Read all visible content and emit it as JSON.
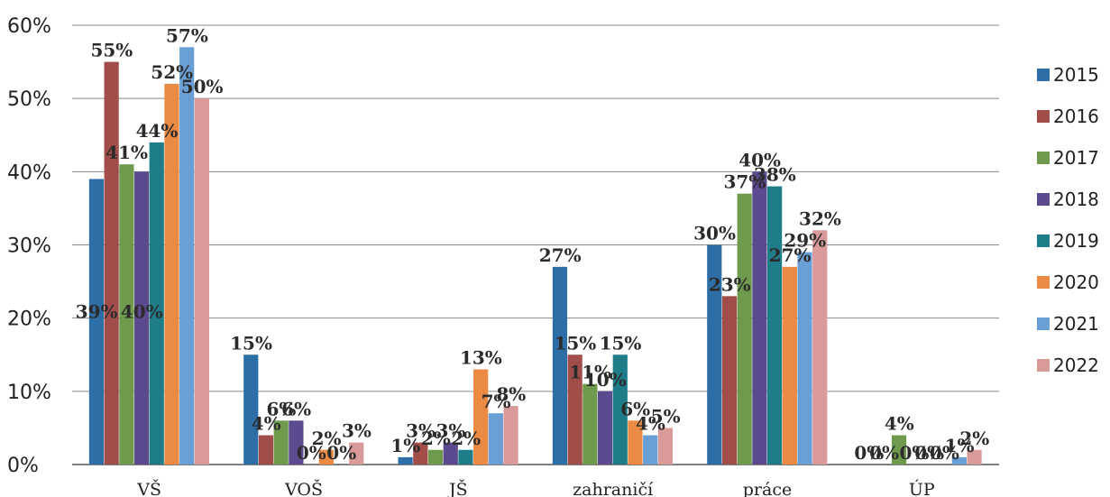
{
  "chart_data": {
    "type": "bar",
    "categories": [
      "VŠ",
      "VOŠ",
      "JŠ",
      "zahraničí",
      "práce",
      "ÚP"
    ],
    "series": [
      {
        "name": "2015",
        "color": "#2e6ea6",
        "values": [
          39,
          15,
          1,
          27,
          30,
          0
        ]
      },
      {
        "name": "2016",
        "color": "#a14d4a",
        "values": [
          55,
          4,
          3,
          15,
          23,
          0
        ]
      },
      {
        "name": "2017",
        "color": "#6f9a4e",
        "values": [
          41,
          6,
          2,
          11,
          37,
          4
        ]
      },
      {
        "name": "2018",
        "color": "#5b4a8e",
        "values": [
          40,
          6,
          3,
          10,
          40,
          0
        ]
      },
      {
        "name": "2019",
        "color": "#1f7d8a",
        "values": [
          44,
          0,
          2,
          15,
          38,
          0
        ]
      },
      {
        "name": "2020",
        "color": "#ea8a43",
        "values": [
          52,
          2,
          13,
          6,
          27,
          0
        ]
      },
      {
        "name": "2021",
        "color": "#6a9fd5",
        "values": [
          57,
          0,
          7,
          4,
          29,
          1
        ]
      },
      {
        "name": "2022",
        "color": "#d99a9a",
        "values": [
          50,
          3,
          8,
          5,
          32,
          2
        ]
      }
    ],
    "y_ticks": [
      "0%",
      "10%",
      "20%",
      "30%",
      "40%",
      "50%",
      "60%"
    ],
    "ylim": [
      0,
      60
    ],
    "data_labels": [
      [
        "39%",
        "55%",
        "41%",
        "40%",
        "44%",
        "52%",
        "57%",
        "50%"
      ],
      [
        "15%",
        "4%",
        "6%",
        "6%",
        "0%",
        "2%",
        "0%",
        "3%"
      ],
      [
        "1%",
        "3%",
        "2%",
        "3%",
        "2%",
        "13%",
        "7%",
        "8%"
      ],
      [
        "27%",
        "15%",
        "11%",
        "10%",
        "15%",
        "6%",
        "4%",
        "5%"
      ],
      [
        "30%",
        "23%",
        "37%",
        "40%",
        "38%",
        "27%",
        "29%",
        "32%"
      ],
      [
        "0%",
        "0%",
        "4%",
        "0%",
        "0%",
        "0%",
        "1%",
        "2%"
      ]
    ],
    "grid": true,
    "legend_position": "right"
  }
}
